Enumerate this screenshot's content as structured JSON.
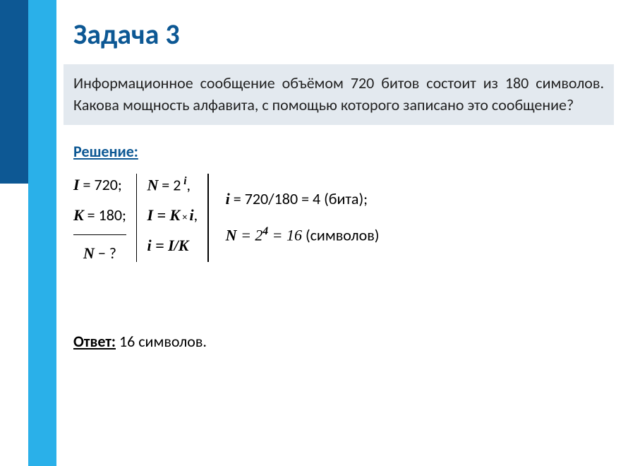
{
  "title": "Задача 3",
  "problem_text": "Информационное сообщение объёмом 720 битов состоит из 180 символов. Какова мощность алфавита, с помощью которого записано это сообщение?",
  "solution_label": "Решение:",
  "given": {
    "I_label": "I",
    "I_value": " = 720;",
    "K_label": "K",
    "K_value": " = 180;",
    "N_label": "N",
    "N_unknown": " − ?"
  },
  "formulas": {
    "f1_lhs": "N",
    "f1_rhs": " = 2",
    "f1_sup": " i",
    "f1_end": ",",
    "f2_lhs": "I",
    "f2_eq": " = ",
    "f2_K": "K",
    "f2_times": " × ",
    "f2_i": "i",
    "f2_end": ",",
    "f3_lhs": "i",
    "f3_eq": " = ",
    "f3_rhs": "I/K"
  },
  "calc": {
    "c1_lhs": "i",
    "c1_rhs": " = 720/180 = 4 (бита);",
    "c2_lhs": "N",
    "c2_eq": " = ",
    "c2_base": "2",
    "c2_sup": "4",
    "c2_mid": " = 16",
    "c2_paren": " (символов)"
  },
  "answer": {
    "label": "Ответ:",
    "text": " 16 символов."
  },
  "colors": {
    "sidebar_dark": "#0d5894",
    "sidebar_light": "#2ab0e9",
    "problem_bg": "#e3e9ef",
    "title_color": "#0d5894"
  }
}
